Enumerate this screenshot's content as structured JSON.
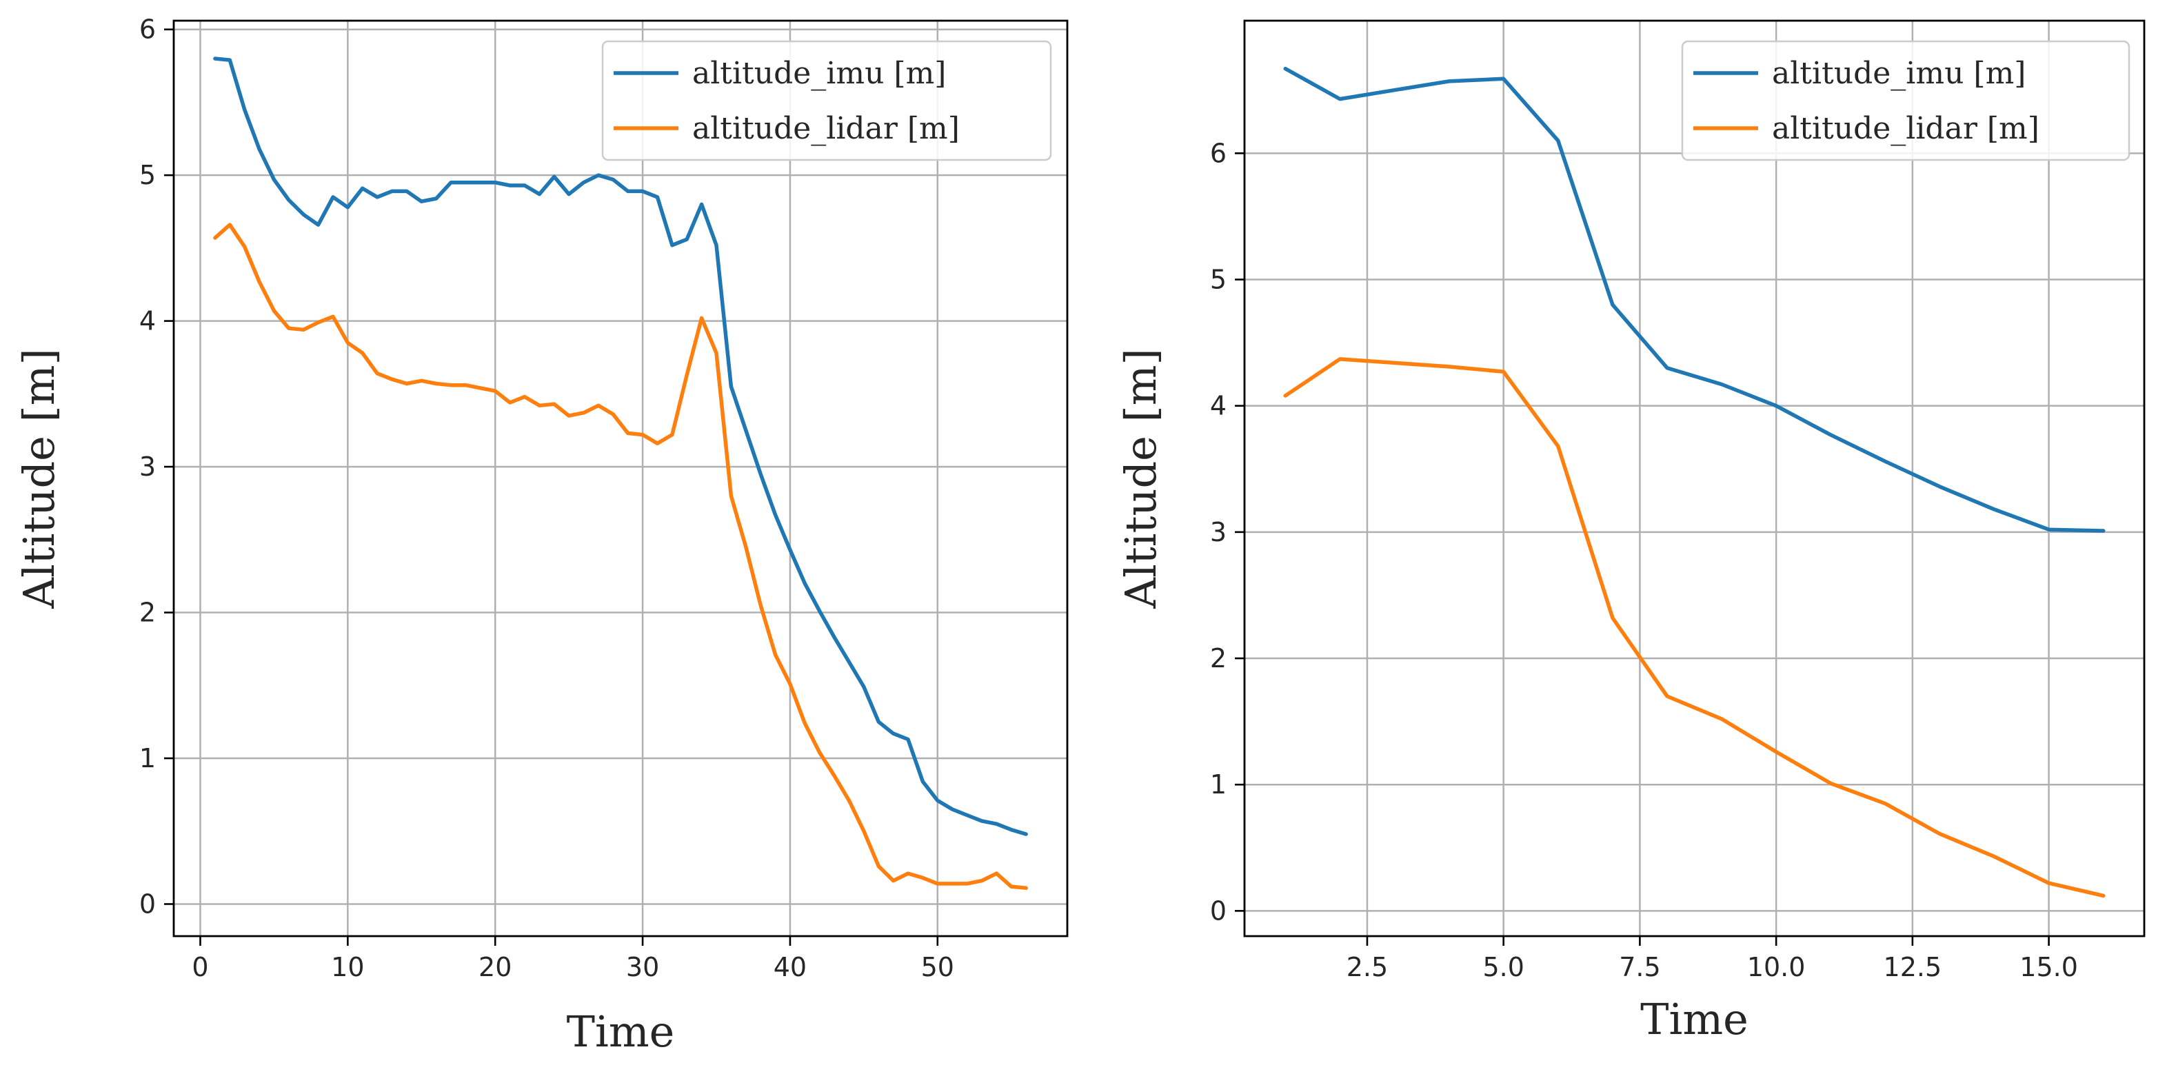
{
  "chart_data": [
    {
      "type": "line",
      "title": "",
      "xlabel": "Time",
      "ylabel": "Altitude [m]",
      "xlim": [
        -1.8,
        58.8
      ],
      "ylim": [
        -0.22,
        6.06
      ],
      "xticks": [
        0,
        10,
        20,
        30,
        40,
        50
      ],
      "xtick_labels": [
        "0",
        "10",
        "20",
        "30",
        "40",
        "50"
      ],
      "yticks": [
        0,
        1,
        2,
        3,
        4,
        5,
        6
      ],
      "ytick_labels": [
        "0",
        "1",
        "2",
        "3",
        "4",
        "5",
        "6"
      ],
      "grid": true,
      "legend_position": "top-right",
      "x": [
        1,
        2,
        3,
        4,
        5,
        6,
        7,
        8,
        9,
        10,
        11,
        12,
        13,
        14,
        15,
        16,
        17,
        18,
        19,
        20,
        21,
        22,
        23,
        24,
        25,
        26,
        27,
        28,
        29,
        30,
        31,
        32,
        33,
        34,
        35,
        36,
        37,
        38,
        39,
        40,
        41,
        42,
        43,
        44,
        45,
        46,
        47,
        48,
        49,
        50,
        51,
        52,
        53,
        54,
        55,
        56
      ],
      "series": [
        {
          "name": "altitude_imu [m]",
          "color": "#1f77b4",
          "values": [
            5.8,
            5.79,
            5.45,
            5.18,
            4.97,
            4.83,
            4.73,
            4.66,
            4.85,
            4.78,
            4.91,
            4.85,
            4.89,
            4.89,
            4.82,
            4.84,
            4.95,
            4.95,
            4.95,
            4.95,
            4.93,
            4.93,
            4.87,
            4.99,
            4.87,
            4.95,
            5.0,
            4.97,
            4.89,
            4.89,
            4.85,
            4.52,
            4.56,
            4.8,
            4.52,
            3.55,
            3.25,
            2.95,
            2.67,
            2.43,
            2.2,
            2.01,
            1.83,
            1.66,
            1.49,
            1.25,
            1.17,
            1.13,
            0.84,
            0.71,
            0.65,
            0.61,
            0.57,
            0.55,
            0.51,
            0.48
          ]
        },
        {
          "name": "altitude_lidar [m]",
          "color": "#ff7f0e",
          "values": [
            4.57,
            4.66,
            4.51,
            4.27,
            4.07,
            3.95,
            3.94,
            3.99,
            4.03,
            3.85,
            3.78,
            3.64,
            3.6,
            3.57,
            3.59,
            3.57,
            3.56,
            3.56,
            3.54,
            3.52,
            3.44,
            3.48,
            3.42,
            3.43,
            3.35,
            3.37,
            3.42,
            3.36,
            3.23,
            3.22,
            3.16,
            3.22,
            3.63,
            4.02,
            3.78,
            2.8,
            2.45,
            2.05,
            1.71,
            1.51,
            1.24,
            1.04,
            0.88,
            0.71,
            0.5,
            0.26,
            0.16,
            0.21,
            0.18,
            0.14,
            0.14,
            0.14,
            0.16,
            0.21,
            0.12,
            0.11
          ]
        }
      ]
    },
    {
      "type": "line",
      "title": "",
      "xlabel": "Time",
      "ylabel": "Altitude [m]",
      "xlim": [
        0.25,
        16.75
      ],
      "ylim": [
        -0.2,
        7.05
      ],
      "xticks": [
        2.5,
        5.0,
        7.5,
        10.0,
        12.5,
        15.0
      ],
      "xtick_labels": [
        "2.5",
        "5.0",
        "7.5",
        "10.0",
        "12.5",
        "15.0"
      ],
      "yticks": [
        0,
        1,
        2,
        3,
        4,
        5,
        6
      ],
      "ytick_labels": [
        "0",
        "1",
        "2",
        "3",
        "4",
        "5",
        "6"
      ],
      "grid": true,
      "legend_position": "top-right",
      "x": [
        1,
        2,
        3,
        4,
        5,
        6,
        7,
        8,
        9,
        10,
        11,
        12,
        13,
        14,
        15,
        16
      ],
      "series": [
        {
          "name": "altitude_imu [m]",
          "color": "#1f77b4",
          "values": [
            6.67,
            6.43,
            6.5,
            6.57,
            6.59,
            6.1,
            4.8,
            4.3,
            4.17,
            4.0,
            3.77,
            3.56,
            3.36,
            3.18,
            3.02,
            3.01
          ]
        },
        {
          "name": "altitude_lidar [m]",
          "color": "#ff7f0e",
          "values": [
            4.08,
            4.37,
            4.34,
            4.31,
            4.27,
            3.68,
            2.32,
            1.7,
            1.52,
            1.26,
            1.01,
            0.85,
            0.61,
            0.43,
            0.22,
            0.12
          ]
        }
      ]
    }
  ]
}
